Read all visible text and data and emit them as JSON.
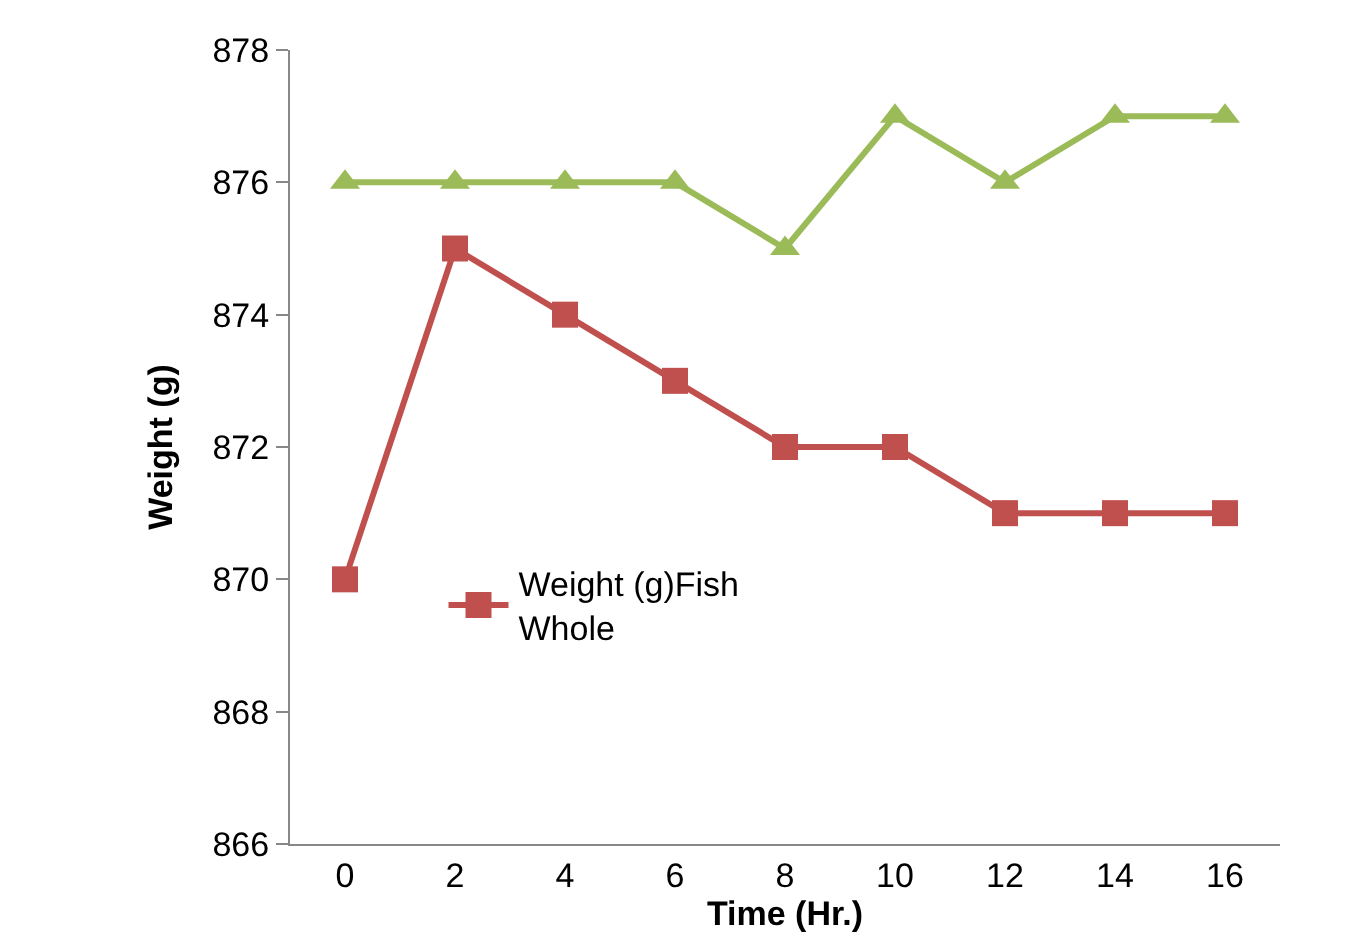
{
  "chart_data": {
    "type": "line",
    "xlabel": "Time (Hr.)",
    "ylabel": "Weight (g)",
    "categories": [
      "0",
      "2",
      "4",
      "6",
      "8",
      "10",
      "12",
      "14",
      "16"
    ],
    "series": [
      {
        "color": "#9bbb59",
        "marker": "triangle",
        "values": [
          876,
          876,
          876,
          876,
          875,
          877,
          876,
          877,
          877
        ]
      },
      {
        "name": "Weight (g)Fish Whole",
        "color": "#c0504d",
        "marker": "square",
        "values": [
          870,
          875,
          874,
          873,
          872,
          872,
          871,
          871,
          871
        ]
      }
    ],
    "ylim": [
      866,
      878
    ],
    "yticks": [
      866,
      868,
      870,
      872,
      874,
      876,
      878
    ],
    "legend": "left"
  }
}
